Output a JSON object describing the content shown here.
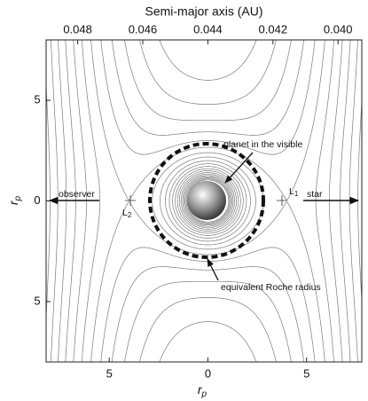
{
  "chart_data": {
    "type": "contour",
    "top_axis_label": "Semi-major axis (AU)",
    "xlabel": "r",
    "xlabel_sub": "p",
    "ylabel": "r",
    "ylabel_sub": "p",
    "xlim": [
      -8.2,
      7.8
    ],
    "ylim": [
      -8.0,
      8.0
    ],
    "xticks": [
      {
        "value": -5,
        "label": "5"
      },
      0,
      5
    ],
    "yticks": [
      {
        "value": -5,
        "label": "5"
      },
      0,
      5
    ],
    "x2lim": [
      0.04897,
      0.03927
    ],
    "x2ticks": [
      0.048,
      0.046,
      0.044,
      0.042,
      {
        "value": 0.04,
        "label": "0.040"
      }
    ],
    "annotations": [
      {
        "text": "planet in the visible"
      },
      {
        "text": "equivalent Roche radius"
      },
      {
        "text": "observer"
      },
      {
        "text": "star"
      },
      {
        "text": "L",
        "subscript": "2"
      },
      {
        "text": "L",
        "subscript": "1"
      }
    ]
  }
}
